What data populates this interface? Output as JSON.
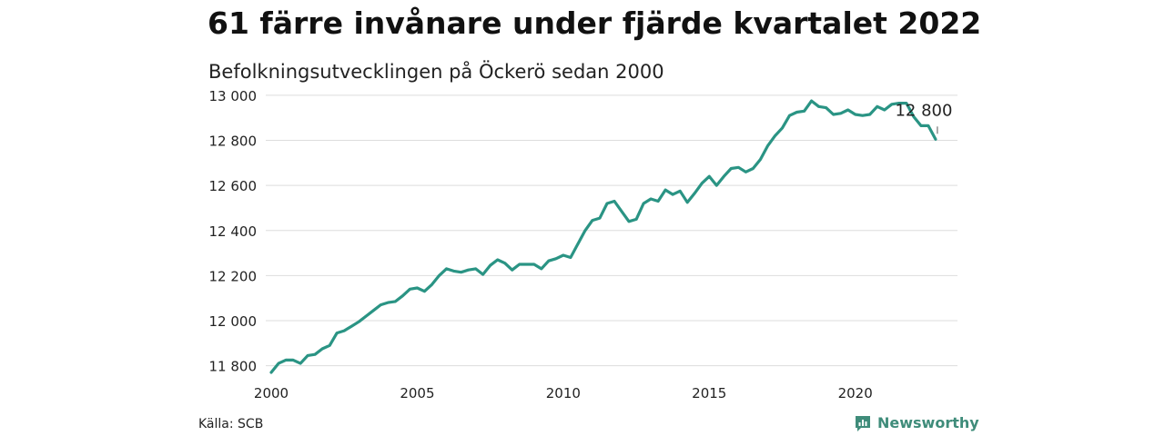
{
  "header": {
    "title": "61 färre invånare under fjärde kvartalet 2022",
    "subtitle": "Befolkningsutvecklingen på Öckerö sedan 2000"
  },
  "footer": {
    "source": "Källa: SCB",
    "brand": "Newsworthy",
    "brand_icon": "newsworthy-logo-icon"
  },
  "colors": {
    "line": "#2a9484",
    "grid": "#dddddd",
    "text": "#222222",
    "brand": "#3f8c7a"
  },
  "chart_data": {
    "type": "line",
    "title": "61 färre invånare under fjärde kvartalet 2022",
    "subtitle": "Befolkningsutvecklingen på Öckerö sedan 2000",
    "xlabel": "",
    "ylabel": "",
    "xlim": [
      2000,
      2023.5
    ],
    "ylim": [
      11750,
      13040
    ],
    "xticks": [
      2000,
      2005,
      2010,
      2015,
      2020
    ],
    "xtick_labels": [
      "2000",
      "2005",
      "2010",
      "2015",
      "2020"
    ],
    "yticks": [
      11800,
      12000,
      12200,
      12400,
      12600,
      12800,
      13000
    ],
    "ytick_labels": [
      "11 800",
      "12 000",
      "12 200",
      "12 400",
      "12 600",
      "12 800",
      "13 000"
    ],
    "grid": "horizontal",
    "legend": "none",
    "annotation": {
      "x": 2022.75,
      "y": 12805,
      "label": "12 800"
    },
    "series": [
      {
        "x": [
          2000.0,
          2000.25,
          2000.5,
          2000.75,
          2001.0,
          2001.25,
          2001.5,
          2001.75,
          2002.0,
          2002.25,
          2002.5,
          2002.75,
          2003.0,
          2003.25,
          2003.5,
          2003.75,
          2004.0,
          2004.25,
          2004.5,
          2004.75,
          2005.0,
          2005.25,
          2005.5,
          2005.75,
          2006.0,
          2006.25,
          2006.5,
          2006.75,
          2007.0,
          2007.25,
          2007.5,
          2007.75,
          2008.0,
          2008.25,
          2008.5,
          2008.75,
          2009.0,
          2009.25,
          2009.5,
          2009.75,
          2010.0,
          2010.25,
          2010.5,
          2010.75,
          2011.0,
          2011.25,
          2011.5,
          2011.75,
          2012.0,
          2012.25,
          2012.5,
          2012.75,
          2013.0,
          2013.25,
          2013.5,
          2013.75,
          2014.0,
          2014.25,
          2014.5,
          2014.75,
          2015.0,
          2015.25,
          2015.5,
          2015.75,
          2016.0,
          2016.25,
          2016.5,
          2016.75,
          2017.0,
          2017.25,
          2017.5,
          2017.75,
          2018.0,
          2018.25,
          2018.5,
          2018.75,
          2019.0,
          2019.25,
          2019.5,
          2019.75,
          2020.0,
          2020.25,
          2020.5,
          2020.75,
          2021.0,
          2021.25,
          2021.5,
          2021.75,
          2022.0,
          2022.25,
          2022.5,
          2022.75
        ],
        "y": [
          11770,
          11810,
          11825,
          11825,
          11810,
          11845,
          11850,
          11875,
          11890,
          11945,
          11955,
          11975,
          11995,
          12020,
          12045,
          12070,
          12080,
          12085,
          12110,
          12140,
          12145,
          12130,
          12160,
          12200,
          12230,
          12220,
          12215,
          12225,
          12230,
          12205,
          12245,
          12270,
          12255,
          12225,
          12250,
          12250,
          12250,
          12230,
          12265,
          12275,
          12290,
          12280,
          12340,
          12400,
          12445,
          12455,
          12520,
          12530,
          12485,
          12440,
          12450,
          12520,
          12540,
          12530,
          12580,
          12560,
          12575,
          12525,
          12565,
          12610,
          12640,
          12600,
          12640,
          12675,
          12680,
          12660,
          12675,
          12715,
          12775,
          12820,
          12855,
          12910,
          12925,
          12930,
          12975,
          12950,
          12945,
          12915,
          12920,
          12935,
          12915,
          12910,
          12915,
          12950,
          12935,
          12960,
          12965,
          12965,
          12905,
          12865,
          12865,
          12805
        ]
      }
    ]
  }
}
